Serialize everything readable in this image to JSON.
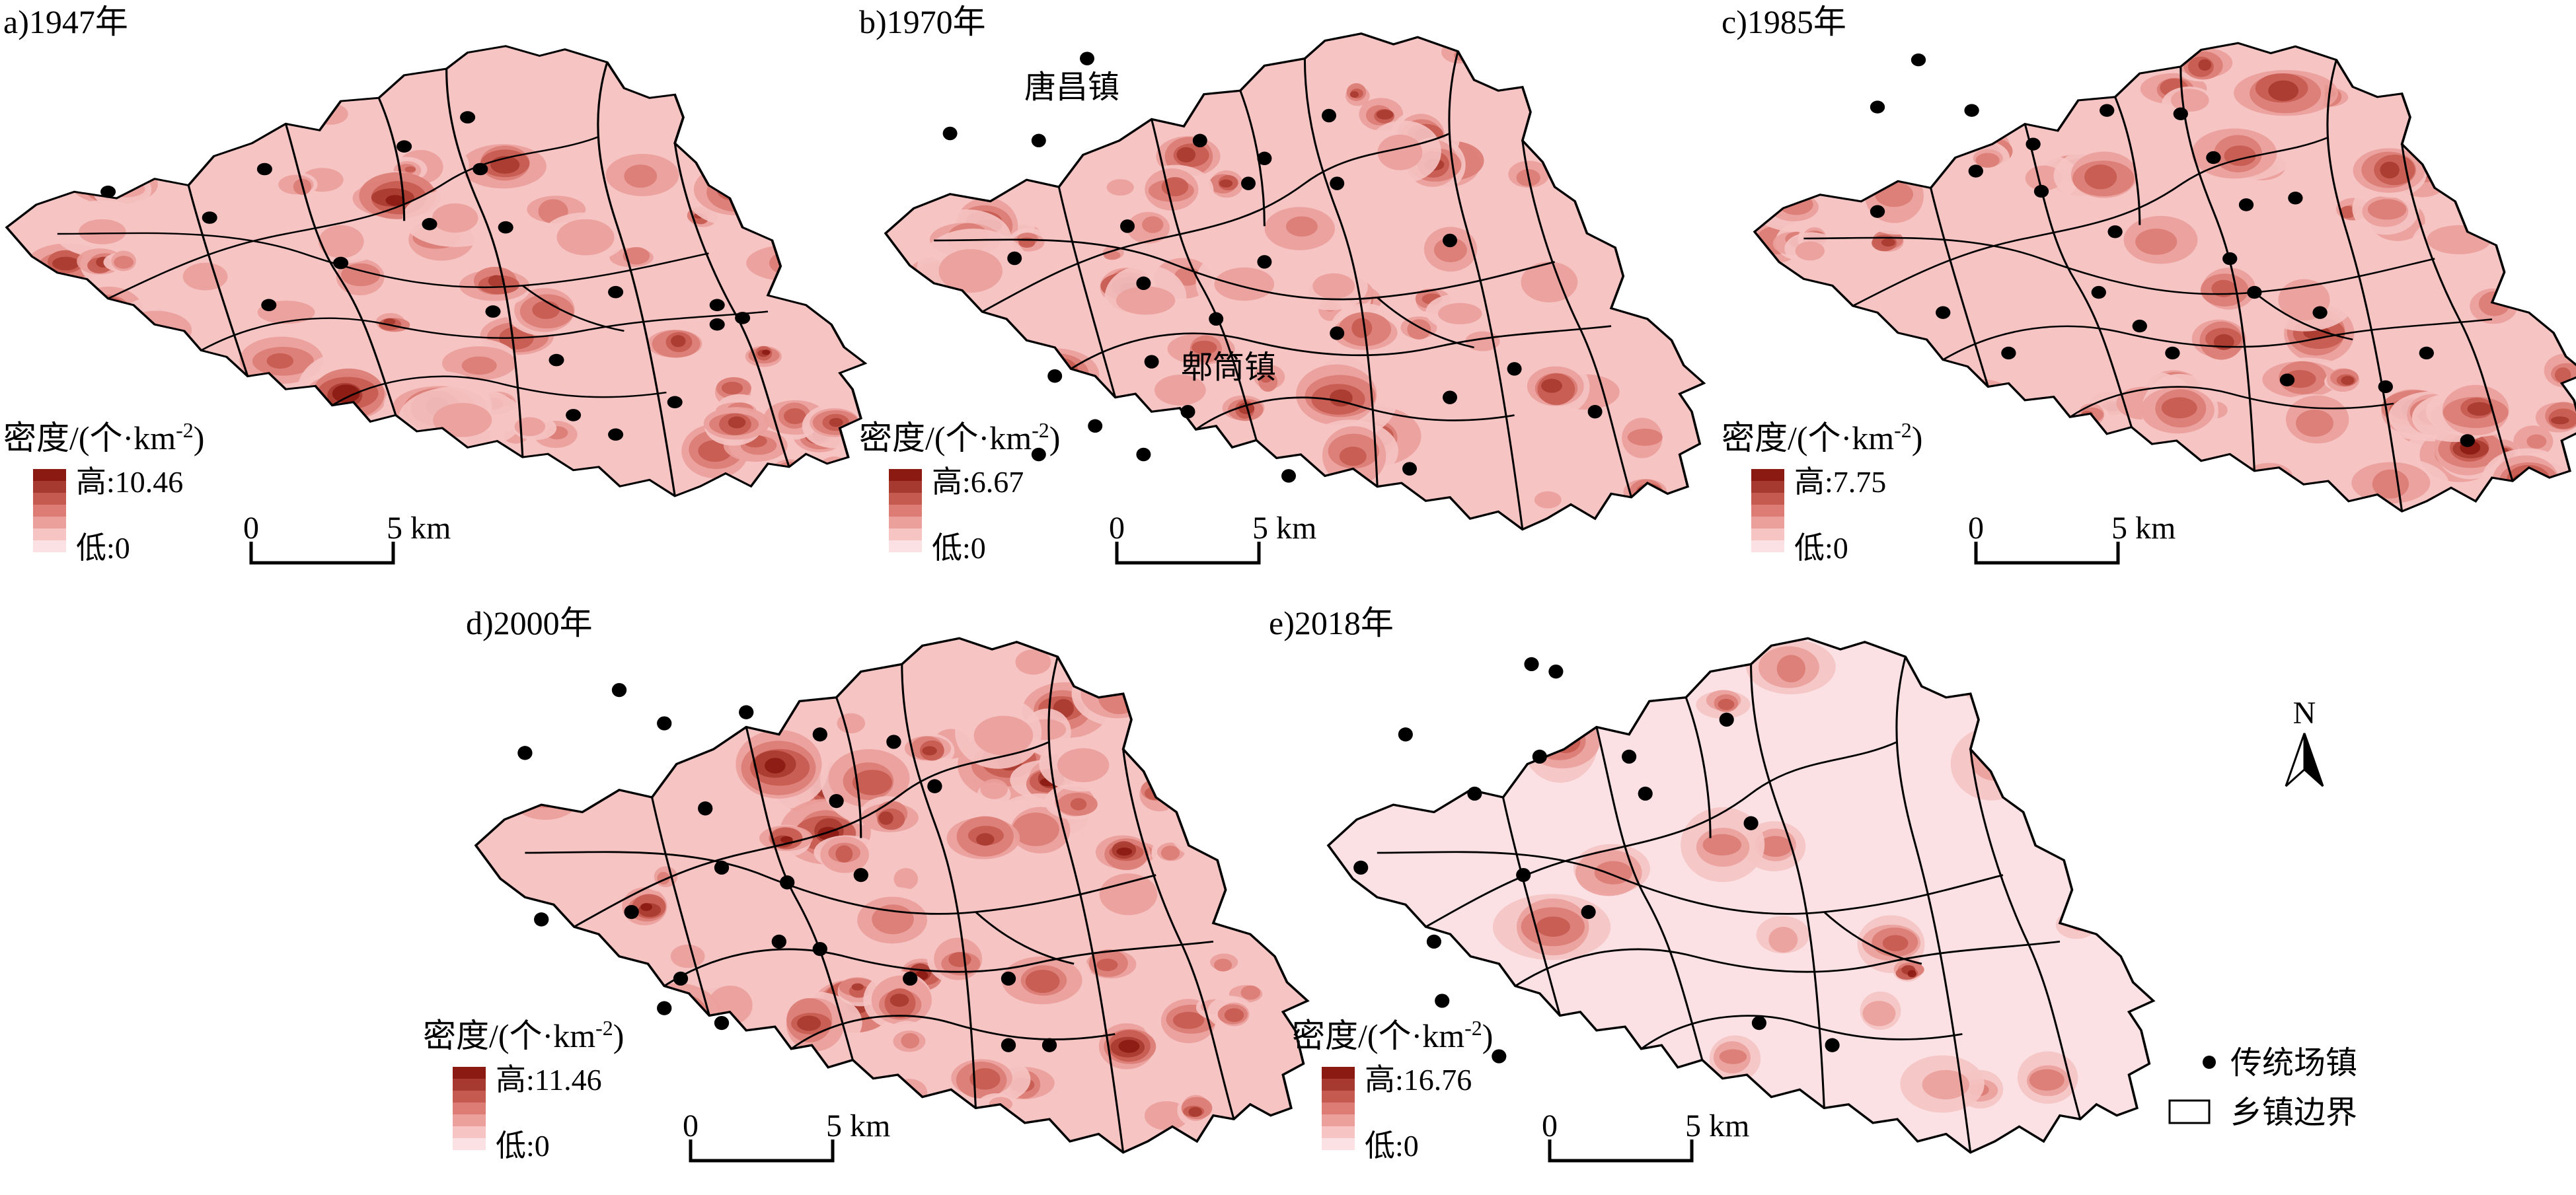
{
  "colors": {
    "ramp": [
      "#fbe1e4",
      "#f5c4c3",
      "#eba09b",
      "#dc7c74",
      "#c55a50",
      "#a73a30",
      "#8b1a12"
    ],
    "border": "#000000",
    "town_dot": "#000000"
  },
  "icons": {
    "north": "north-arrow-icon",
    "town": "dot-icon",
    "boundary": "rectangle-outline-icon"
  },
  "panels": [
    {
      "id": "a",
      "title": "a)1947年",
      "legend": {
        "title": "密度/(个·km",
        "sup": "-2",
        "close": ")",
        "high": "高:10.46",
        "low": "低:0"
      },
      "scale": {
        "zero": "0",
        "five": "5 km"
      }
    },
    {
      "id": "b",
      "title": "b)1970年",
      "legend": {
        "title": "密度/(个·km",
        "sup": "-2",
        "close": ")",
        "high": "高:6.67",
        "low": "低:0"
      },
      "scale": {
        "zero": "0",
        "five": "5 km"
      },
      "labels": [
        "唐昌镇",
        "郫筒镇"
      ]
    },
    {
      "id": "c",
      "title": "c)1985年",
      "legend": {
        "title": "密度/(个·km",
        "sup": "-2",
        "close": ")",
        "high": "高:7.75",
        "low": "低:0"
      },
      "scale": {
        "zero": "0",
        "five": "5 km"
      }
    },
    {
      "id": "d",
      "title": "d)2000年",
      "legend": {
        "title": "密度/(个·km",
        "sup": "-2",
        "close": ")",
        "high": "高:11.46",
        "low": "低:0"
      },
      "scale": {
        "zero": "0",
        "five": "5 km"
      }
    },
    {
      "id": "e",
      "title": "e)2018年",
      "legend": {
        "title": "密度/(个·km",
        "sup": "-2",
        "close": ")",
        "high": "高:16.76",
        "low": "低:0"
      },
      "scale": {
        "zero": "0",
        "five": "5 km"
      }
    }
  ],
  "north": {
    "label": "N"
  },
  "key": {
    "town": "传统场镇",
    "boundary": "乡镇边界"
  }
}
